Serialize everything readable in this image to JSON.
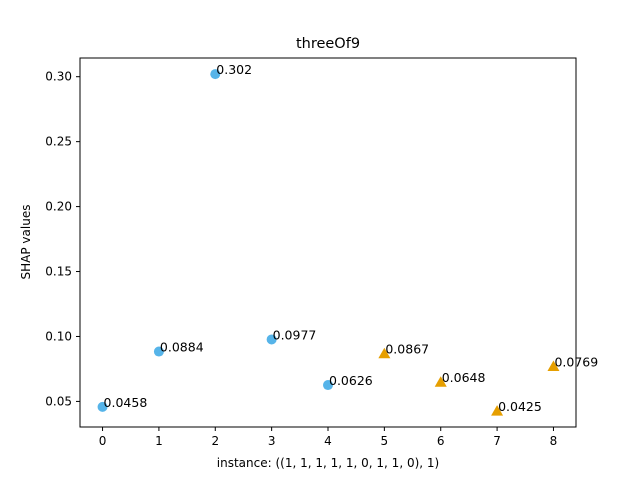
{
  "chart_data": {
    "type": "scatter",
    "title": "threeOf9",
    "xlabel": "instance: ((1, 1, 1, 1, 1, 0, 1, 1, 0), 1)",
    "ylabel": "SHAP values",
    "xlim": [
      -0.4,
      8.4
    ],
    "ylim": [
      0.0303,
      0.3144
    ],
    "x_ticks": [
      0,
      1,
      2,
      3,
      4,
      5,
      6,
      7,
      8
    ],
    "x_tick_labels": [
      "0",
      "1",
      "2",
      "3",
      "4",
      "5",
      "6",
      "7",
      "8"
    ],
    "y_ticks": [
      0.05,
      0.1,
      0.15,
      0.2,
      0.25,
      0.3
    ],
    "y_tick_labels": [
      "0.05",
      "0.10",
      "0.15",
      "0.20",
      "0.25",
      "0.30"
    ],
    "grid": false,
    "series": [
      {
        "marker": "circle",
        "color": "#56B4E9",
        "x": [
          0,
          1,
          2,
          3,
          4
        ],
        "y": [
          0.0458,
          0.0884,
          0.302,
          0.0977,
          0.0626
        ],
        "labels": [
          "0.0458",
          "0.0884",
          "0.302",
          "0.0977",
          "0.0626"
        ]
      },
      {
        "marker": "triangle",
        "color": "#E69F00",
        "x": [
          5,
          6,
          7,
          8
        ],
        "y": [
          0.0867,
          0.0648,
          0.0425,
          0.0769
        ],
        "labels": [
          "0.0867",
          "0.0648",
          "0.0425",
          "0.0769"
        ]
      }
    ]
  }
}
